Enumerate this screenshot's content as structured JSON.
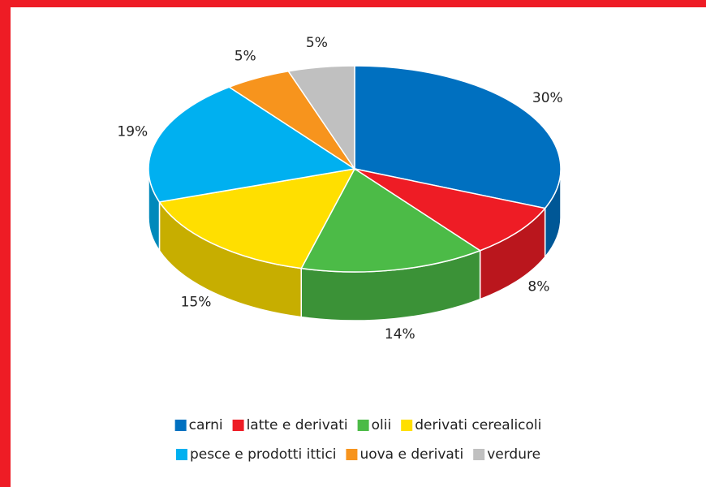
{
  "chart_data": {
    "type": "pie3d",
    "categories": [
      "carni",
      "latte e derivati",
      "olii",
      "derivati cerealicoli",
      "pesce e prodotti ittici",
      "uova e derivati",
      "verdure"
    ],
    "values": [
      30,
      8,
      14,
      15,
      19,
      5,
      5
    ],
    "value_labels": [
      "30%",
      "8%",
      "14%",
      "15%",
      "19%",
      "5%",
      "5%"
    ],
    "colors": [
      "#0070c0",
      "#ee1c25",
      "#4cbb47",
      "#ffdf00",
      "#00b0f0",
      "#f7941d",
      "#c0c0c0"
    ],
    "legend": "bottom"
  }
}
